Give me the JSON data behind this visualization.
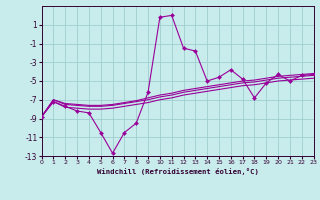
{
  "xlabel": "Windchill (Refroidissement éolien,°C)",
  "bg_color": "#c8ecec",
  "grid_color": "#9fcfcf",
  "line_color": "#990099",
  "xlim": [
    0,
    23
  ],
  "ylim": [
    -13,
    3
  ],
  "xticks": [
    0,
    1,
    2,
    3,
    4,
    5,
    6,
    7,
    8,
    9,
    10,
    11,
    12,
    13,
    14,
    15,
    16,
    17,
    18,
    19,
    20,
    21,
    22,
    23
  ],
  "yticks": [
    1,
    -1,
    -3,
    -5,
    -7,
    -9,
    -11,
    -13
  ],
  "series": [
    {
      "x": [
        0,
        1,
        2,
        3,
        4,
        5,
        6,
        7,
        8,
        9,
        10,
        11,
        12,
        13,
        14,
        15,
        16,
        17,
        18,
        19,
        20,
        21,
        22,
        23
      ],
      "y": [
        -8.8,
        -7.2,
        -7.7,
        -8.2,
        -8.4,
        -10.5,
        -12.7,
        -10.5,
        -9.5,
        -6.2,
        1.8,
        2.0,
        -1.5,
        -1.8,
        -5.0,
        -4.6,
        -3.8,
        -4.8,
        -6.8,
        -5.2,
        -4.3,
        -5.0,
        -4.4,
        -4.3
      ]
    },
    {
      "x": [
        0,
        1,
        2,
        3,
        4,
        5,
        6,
        7,
        8,
        9,
        10,
        11,
        12,
        13,
        14,
        15,
        16,
        17,
        18,
        19,
        20,
        21,
        22,
        23
      ],
      "y": [
        -8.8,
        -7.2,
        -7.8,
        -7.9,
        -8.0,
        -8.0,
        -7.9,
        -7.7,
        -7.5,
        -7.3,
        -7.0,
        -6.8,
        -6.5,
        -6.3,
        -6.1,
        -5.9,
        -5.7,
        -5.5,
        -5.4,
        -5.2,
        -5.0,
        -4.9,
        -4.8,
        -4.7
      ]
    },
    {
      "x": [
        0,
        1,
        2,
        3,
        4,
        5,
        6,
        7,
        8,
        9,
        10,
        11,
        12,
        13,
        14,
        15,
        16,
        17,
        18,
        19,
        20,
        21,
        22,
        23
      ],
      "y": [
        -8.8,
        -7.0,
        -7.5,
        -7.6,
        -7.7,
        -7.7,
        -7.6,
        -7.4,
        -7.2,
        -7.0,
        -6.7,
        -6.5,
        -6.2,
        -6.0,
        -5.8,
        -5.6,
        -5.4,
        -5.2,
        -5.1,
        -4.9,
        -4.7,
        -4.6,
        -4.5,
        -4.4
      ]
    },
    {
      "x": [
        0,
        1,
        2,
        3,
        4,
        5,
        6,
        7,
        8,
        9,
        10,
        11,
        12,
        13,
        14,
        15,
        16,
        17,
        18,
        19,
        20,
        21,
        22,
        23
      ],
      "y": [
        -8.8,
        -7.0,
        -7.4,
        -7.5,
        -7.6,
        -7.6,
        -7.5,
        -7.3,
        -7.1,
        -6.8,
        -6.5,
        -6.3,
        -6.0,
        -5.8,
        -5.6,
        -5.4,
        -5.2,
        -5.0,
        -4.9,
        -4.7,
        -4.5,
        -4.4,
        -4.3,
        -4.2
      ]
    }
  ]
}
